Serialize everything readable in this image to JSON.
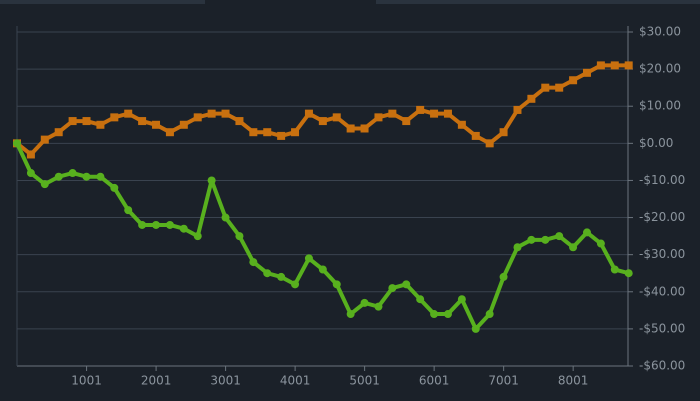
{
  "chart_data": {
    "type": "line",
    "x": [
      0,
      200,
      400,
      600,
      800,
      1000,
      1200,
      1400,
      1600,
      1800,
      2000,
      2200,
      2400,
      2600,
      2800,
      3000,
      3200,
      3400,
      3600,
      3800,
      4000,
      4200,
      4400,
      4600,
      4800,
      5000,
      5200,
      5400,
      5600,
      5800,
      6000,
      6200,
      6400,
      6600,
      6800,
      7000,
      7200,
      7400,
      7600,
      7800,
      8000,
      8200,
      8400,
      8600,
      8800
    ],
    "series": [
      {
        "color": "#c8700f",
        "marker": "square",
        "values": [
          0,
          -3,
          1,
          3,
          6,
          6,
          5,
          7,
          8,
          6,
          5,
          3,
          5,
          7,
          8,
          8,
          6,
          3,
          3,
          2,
          3,
          8,
          6,
          7,
          4,
          4,
          7,
          8,
          6,
          9,
          8,
          8,
          5,
          2,
          0,
          3,
          9,
          12,
          15,
          15,
          17,
          19,
          21,
          21,
          21
        ]
      },
      {
        "color": "#58b01e",
        "marker": "circle",
        "values": [
          0,
          -8,
          -11,
          -9,
          -8,
          -9,
          -9,
          -12,
          -18,
          -22,
          -22,
          -22,
          -23,
          -25,
          -10,
          -20,
          -25,
          -32,
          -35,
          -36,
          -38,
          -31,
          -34,
          -38,
          -46,
          -43,
          -44,
          -39,
          -38,
          -42,
          -46,
          -46,
          -42,
          -50,
          -46,
          -36,
          -28,
          -26,
          -26,
          -25,
          -28,
          -24,
          -27,
          -34,
          -35
        ]
      }
    ],
    "xlim": [
      0,
      8790
    ],
    "xticks": [
      1001,
      2001,
      3001,
      4001,
      5001,
      6001,
      7001,
      8001
    ],
    "ylim": [
      -60,
      30
    ],
    "yticks": [
      {
        "value": -60,
        "label": "-$60.00"
      },
      {
        "value": -50,
        "label": "-$50.00"
      },
      {
        "value": -40,
        "label": "-$40.00"
      },
      {
        "value": -30,
        "label": "-$30.00"
      },
      {
        "value": -20,
        "label": "-$20.00"
      },
      {
        "value": -10,
        "label": "-$10.00"
      },
      {
        "value": 0,
        "label": "$0.00"
      },
      {
        "value": 10,
        "label": "$10.00"
      },
      {
        "value": 20,
        "label": "$20.00"
      },
      {
        "value": 30,
        "label": "$30.00"
      }
    ],
    "grid": true
  }
}
